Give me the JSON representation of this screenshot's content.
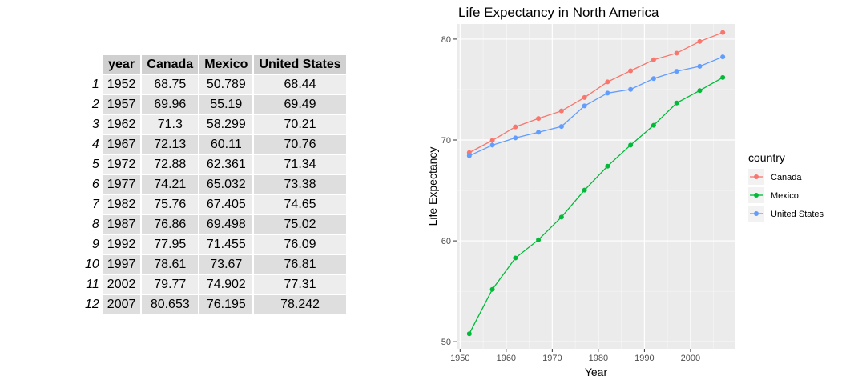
{
  "table": {
    "columns": [
      "year",
      "Canada",
      "Mexico",
      "United States"
    ],
    "rows": [
      {
        "rowname": "1",
        "cells": [
          "1952",
          "68.75",
          "50.789",
          "68.44"
        ]
      },
      {
        "rowname": "2",
        "cells": [
          "1957",
          "69.96",
          "55.19",
          "69.49"
        ]
      },
      {
        "rowname": "3",
        "cells": [
          "1962",
          "71.3",
          "58.299",
          "70.21"
        ]
      },
      {
        "rowname": "4",
        "cells": [
          "1967",
          "72.13",
          "60.11",
          "70.76"
        ]
      },
      {
        "rowname": "5",
        "cells": [
          "1972",
          "72.88",
          "62.361",
          "71.34"
        ]
      },
      {
        "rowname": "6",
        "cells": [
          "1977",
          "74.21",
          "65.032",
          "73.38"
        ]
      },
      {
        "rowname": "7",
        "cells": [
          "1982",
          "75.76",
          "67.405",
          "74.65"
        ]
      },
      {
        "rowname": "8",
        "cells": [
          "1987",
          "76.86",
          "69.498",
          "75.02"
        ]
      },
      {
        "rowname": "9",
        "cells": [
          "1992",
          "77.95",
          "71.455",
          "76.09"
        ]
      },
      {
        "rowname": "10",
        "cells": [
          "1997",
          "78.61",
          "73.67",
          "76.81"
        ]
      },
      {
        "rowname": "11",
        "cells": [
          "2002",
          "79.77",
          "74.902",
          "77.31"
        ]
      },
      {
        "rowname": "12",
        "cells": [
          "2007",
          "80.653",
          "76.195",
          "78.242"
        ]
      }
    ]
  },
  "chart_data": {
    "type": "line",
    "title": "Life Expectancy in North America",
    "xlabel": "Year",
    "ylabel": "Life Expectancy",
    "x": [
      1952,
      1957,
      1962,
      1967,
      1972,
      1977,
      1982,
      1987,
      1992,
      1997,
      2002,
      2007
    ],
    "xlim": [
      1949.25,
      2009.75
    ],
    "ylim": [
      49.3,
      81.5
    ],
    "xticks": [
      1950,
      1960,
      1970,
      1980,
      1990,
      2000
    ],
    "yticks": [
      50,
      60,
      70,
      80
    ],
    "grid": true,
    "legend_title": "country",
    "legend_position": "right",
    "series": [
      {
        "name": "Canada",
        "color": "#F8766D",
        "values": [
          68.75,
          69.96,
          71.3,
          72.13,
          72.88,
          74.21,
          75.76,
          76.86,
          77.95,
          78.61,
          79.77,
          80.653
        ]
      },
      {
        "name": "Mexico",
        "color": "#00BA38",
        "values": [
          50.789,
          55.19,
          58.299,
          60.11,
          62.361,
          65.032,
          67.405,
          69.498,
          71.455,
          73.67,
          74.902,
          76.195
        ]
      },
      {
        "name": "United States",
        "color": "#619CFF",
        "values": [
          68.44,
          69.49,
          70.21,
          70.76,
          71.34,
          73.38,
          74.65,
          75.02,
          76.09,
          76.81,
          77.31,
          78.242
        ]
      }
    ]
  }
}
